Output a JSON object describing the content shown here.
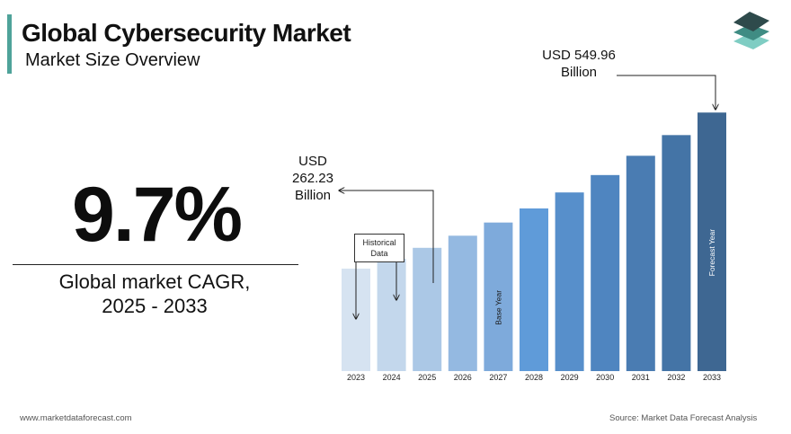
{
  "header": {
    "title": "Global Cybersecurity Market",
    "subtitle": "Market Size Overview"
  },
  "cagr": {
    "value": "9.7%",
    "label_line1": "Global market CAGR,",
    "label_line2": "2025 - 2033"
  },
  "callouts": {
    "start": {
      "line1": "USD",
      "line2": "262.23",
      "line3": "Billion"
    },
    "end": {
      "line1": "USD 549.96",
      "line2": "Billion"
    },
    "historical_line1": "Historical",
    "historical_line2": "Data"
  },
  "footer": {
    "website": "www.marketdataforecast.com",
    "source": "Source: Market Data Forecast Analysis"
  },
  "colors": {
    "accent": "#4fa39a",
    "logo_dark": "#2e4a4b",
    "logo_mid": "#3f8c83",
    "logo_light": "#7fcdc3"
  },
  "chart_data": {
    "type": "bar",
    "categories": [
      "2023",
      "2024",
      "2025",
      "2026",
      "2027",
      "2028",
      "2029",
      "2030",
      "2031",
      "2032",
      "2033"
    ],
    "values": [
      218,
      239,
      262.23,
      288,
      316,
      346,
      380,
      417,
      458,
      502,
      549.96
    ],
    "bar_colors": [
      "#d6e3f1",
      "#c3d7ec",
      "#abc8e6",
      "#94b9e1",
      "#7eaadb",
      "#5f9bd9",
      "#578fcb",
      "#4f85c0",
      "#4a7cb2",
      "#4474a6",
      "#3e6792"
    ],
    "bar_annotations": {
      "2027": "Base Year",
      "2033": "Forecast Year"
    },
    "ylim": [
      0,
      560
    ]
  }
}
